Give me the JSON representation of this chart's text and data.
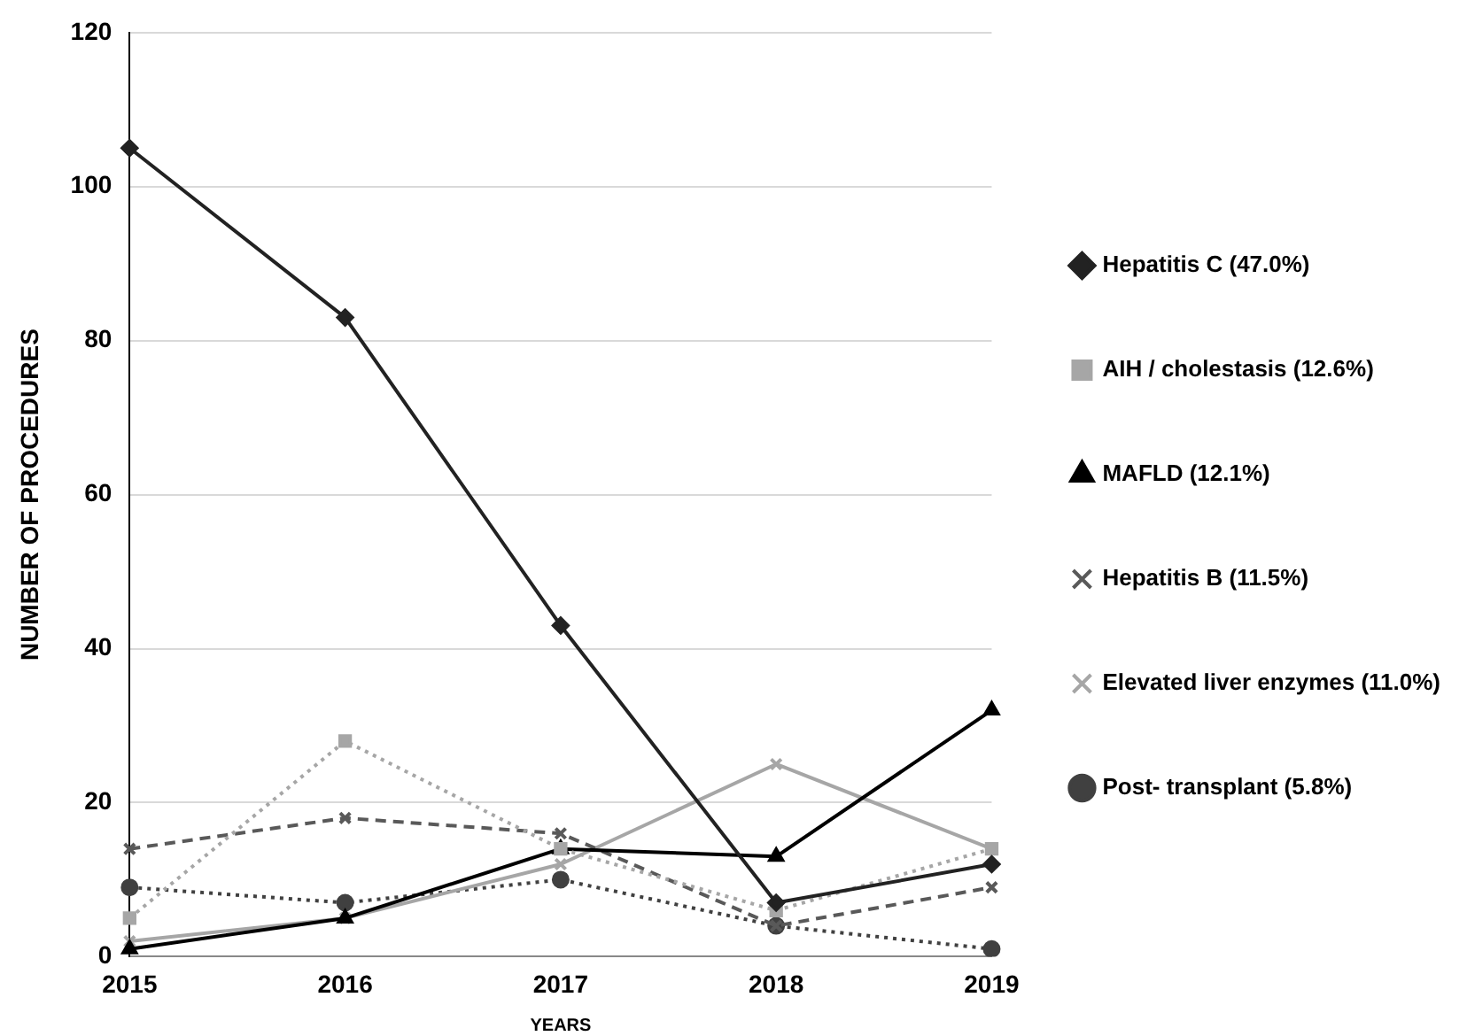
{
  "chart_data": {
    "type": "line",
    "xlabel": "YEARS",
    "ylabel": "NUMBER OF PROCEDURES",
    "categories": [
      "2015",
      "2016",
      "2017",
      "2018",
      "2019"
    ],
    "series": [
      {
        "name": "Hepatitis C (47.0%)",
        "color": "#222222",
        "marker": "diamond",
        "line_style": "solid",
        "values": [
          105,
          83,
          43,
          7,
          12
        ]
      },
      {
        "name": "AIH / cholestasis (12.6%)",
        "color": "#a6a6a6",
        "marker": "square",
        "line_style": "dotted",
        "values": [
          5,
          28,
          14,
          6,
          14
        ]
      },
      {
        "name": "MAFLD (12.1%)",
        "color": "#000000",
        "marker": "triangle",
        "line_style": "solid",
        "values": [
          1,
          5,
          14,
          13,
          32
        ]
      },
      {
        "name": "Hepatitis B (11.5%)",
        "color": "#595959",
        "marker": "cross",
        "line_style": "dashed",
        "values": [
          14,
          18,
          16,
          4,
          9
        ]
      },
      {
        "name": "Elevated liver enzymes (11.0%)",
        "color": "#a6a6a6",
        "marker": "cross",
        "line_style": "solid",
        "values": [
          2,
          5,
          12,
          25,
          14
        ]
      },
      {
        "name": "Post- transplant (5.8%)",
        "color": "#404040",
        "marker": "circle",
        "line_style": "dotted",
        "values": [
          9,
          7,
          10,
          4,
          1
        ]
      }
    ],
    "ylim": [
      0,
      120
    ],
    "yticks": [
      0,
      20,
      40,
      60,
      80,
      100,
      120
    ],
    "grid": "y",
    "legend": "right"
  }
}
